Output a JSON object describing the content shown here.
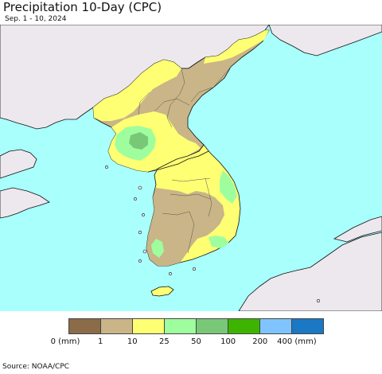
{
  "header": {
    "title": "Precipitation 10-Day (CPC)",
    "subtitle": "Sep. 1 - 10, 2024"
  },
  "map": {
    "ocean_color": "#a8fffc",
    "foreign_land_color": "#ede8ee",
    "country_border_color": "#111111",
    "province_border_color": "#555555"
  },
  "legend": {
    "items": [
      {
        "color": "#8b6b48"
      },
      {
        "color": "#c9b587"
      },
      {
        "color": "#ffff73"
      },
      {
        "color": "#9efe9e"
      },
      {
        "color": "#78c878"
      },
      {
        "color": "#3cb400"
      },
      {
        "color": "#7fc4ff"
      },
      {
        "color": "#1a78c4"
      }
    ],
    "tick_labels": [
      "0 (mm)",
      "1",
      "10",
      "25",
      "50",
      "100",
      "200",
      "400 (mm)"
    ]
  },
  "footer": {
    "source": "Source: NOAA/CPC"
  }
}
